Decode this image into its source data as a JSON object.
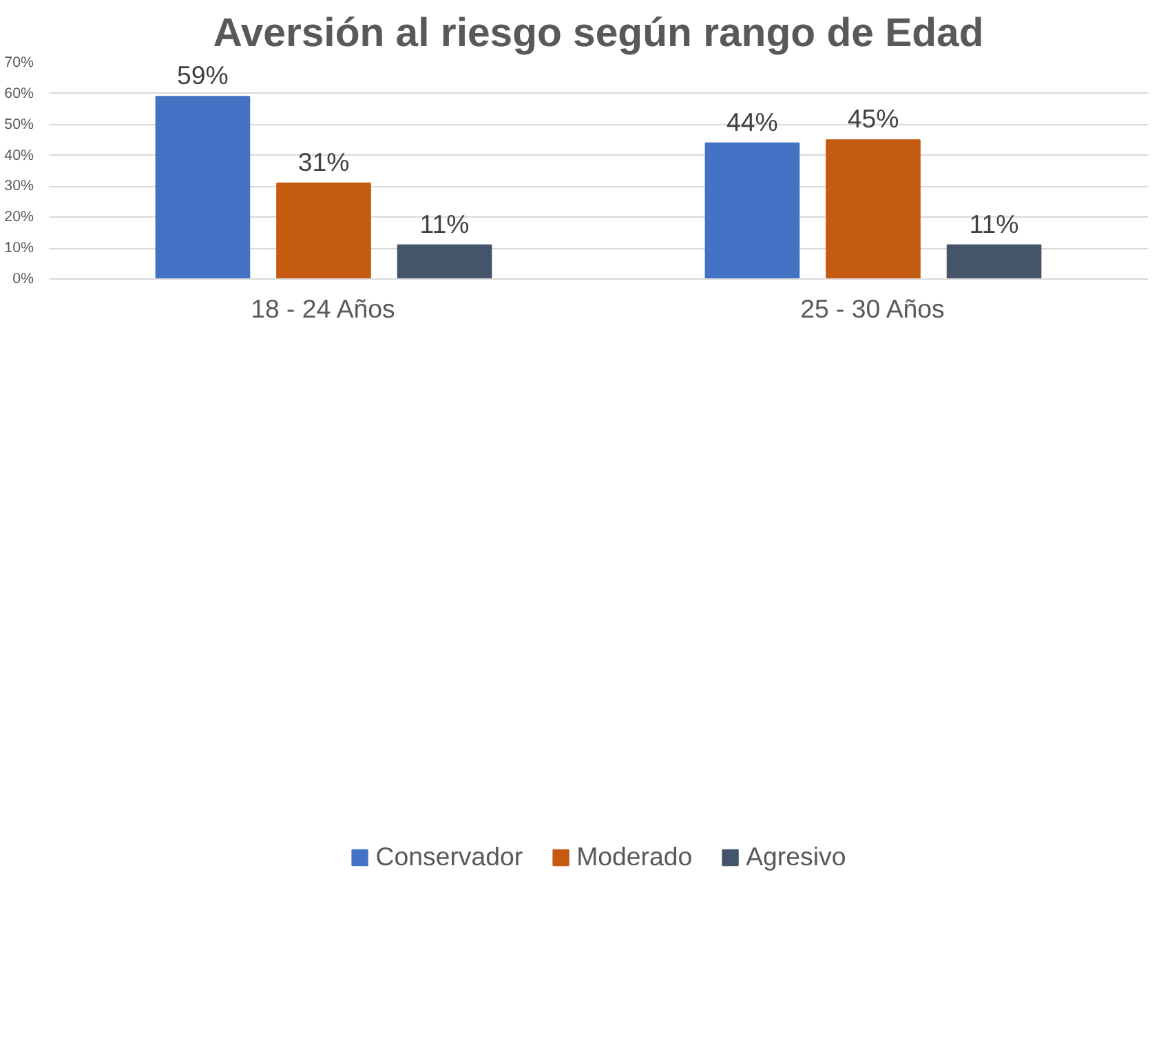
{
  "chart_data": {
    "type": "bar",
    "title": "Aversión al riesgo según rango de Edad",
    "categories": [
      "18 - 24 Años",
      "25 - 30 Años"
    ],
    "series": [
      {
        "name": "Conservador",
        "color": "#4472c4",
        "values": [
          59,
          44
        ],
        "value_labels": [
          "59%",
          "44%"
        ]
      },
      {
        "name": "Moderado",
        "color": "#c55a11",
        "values": [
          31,
          45
        ],
        "value_labels": [
          "31%",
          "45%"
        ]
      },
      {
        "name": "Agresivo",
        "color": "#44546a",
        "values": [
          11,
          11
        ],
        "value_labels": [
          "11%",
          "11%"
        ]
      }
    ],
    "ylim": [
      0,
      70
    ],
    "yticks": [
      {
        "value": 0,
        "label": "0%"
      },
      {
        "value": 10,
        "label": "10%"
      },
      {
        "value": 20,
        "label": "20%"
      },
      {
        "value": 30,
        "label": "30%"
      },
      {
        "value": 40,
        "label": "40%"
      },
      {
        "value": 50,
        "label": "50%"
      },
      {
        "value": 60,
        "label": "60%"
      },
      {
        "value": 70,
        "label": "70%"
      }
    ],
    "grid": "y",
    "legend": "bottom"
  }
}
